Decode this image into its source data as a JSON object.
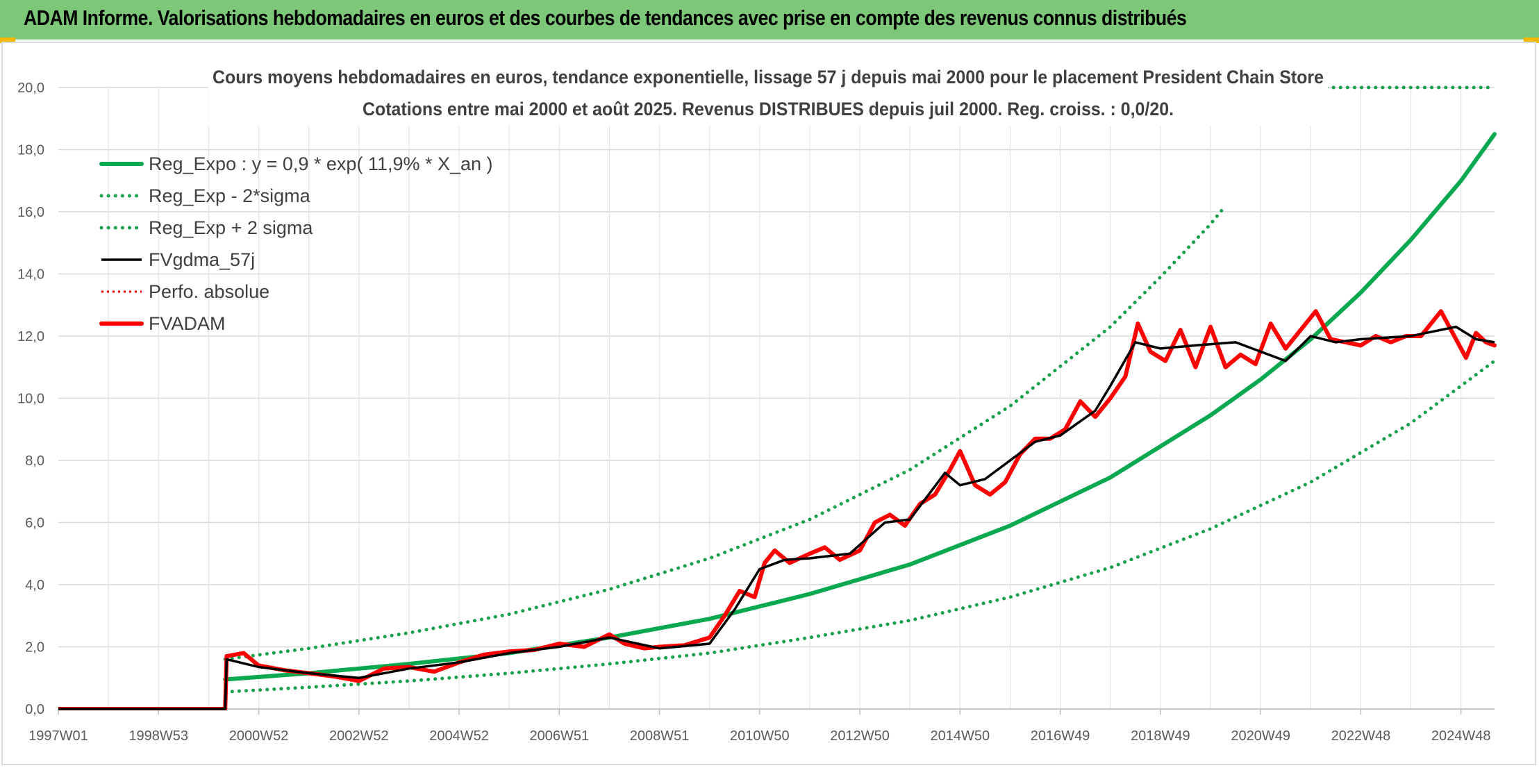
{
  "header": {
    "title": "ADAM Informe. Valorisations hebdomadaires en euros et des courbes de tendances avec prise en compte des revenus connus distribués"
  },
  "colors": {
    "banner": "#7dc878",
    "reg_expo": "#0aa84f",
    "sigma": "#18a04a",
    "fvgdma": "#000000",
    "perfo": "#ff0000",
    "fvadam": "#ff0000",
    "grid": "#d9d9d9"
  },
  "chart_data": {
    "type": "line",
    "title": "Cours moyens hebdomadaires en euros, tendance exponentielle, lissage 57 j depuis mai 2000 pour le placement President Chain Store",
    "subtitle": "Cotations entre mai 2000 et août 2025. Revenus DISTRIBUES depuis juil 2000. Reg. croiss. : 0,0/20.",
    "xlabel": "",
    "ylabel": "",
    "x_range": [
      1997.0,
      2025.67
    ],
    "ylim": [
      0,
      20
    ],
    "y_ticks": [
      "0,0",
      "2,0",
      "4,0",
      "6,0",
      "8,0",
      "10,0",
      "12,0",
      "14,0",
      "16,0",
      "18,0",
      "20,0"
    ],
    "x_ticks": [
      {
        "label": "1997W01",
        "x": 1997.0
      },
      {
        "label": "1998W53",
        "x": 1999.0
      },
      {
        "label": "2000W52",
        "x": 2001.0
      },
      {
        "label": "2002W52",
        "x": 2003.0
      },
      {
        "label": "2004W52",
        "x": 2005.0
      },
      {
        "label": "2006W51",
        "x": 2007.0
      },
      {
        "label": "2008W51",
        "x": 2009.0
      },
      {
        "label": "2010W50",
        "x": 2011.0
      },
      {
        "label": "2012W50",
        "x": 2013.0
      },
      {
        "label": "2014W50",
        "x": 2015.0
      },
      {
        "label": "2016W49",
        "x": 2017.0
      },
      {
        "label": "2018W49",
        "x": 2019.0
      },
      {
        "label": "2020W49",
        "x": 2021.0
      },
      {
        "label": "2022W48",
        "x": 2023.0
      },
      {
        "label": "2024W48",
        "x": 2025.0
      }
    ],
    "grid": true,
    "legend_position": "top-left",
    "series": [
      {
        "name": "Reg_Expo : y = 0,9 * exp( 11,9% *  X_an )",
        "style": "solid-thick",
        "color": "#0aa84f",
        "x": [
          2000.33,
          2002,
          2004,
          2006,
          2008,
          2010,
          2012,
          2014,
          2016,
          2018,
          2020,
          2021,
          2022,
          2023,
          2024,
          2025,
          2025.67
        ],
        "y": [
          0.95,
          1.15,
          1.45,
          1.8,
          2.3,
          2.9,
          3.7,
          4.65,
          5.9,
          7.45,
          9.45,
          10.6,
          11.9,
          13.4,
          15.1,
          17.0,
          18.5
        ]
      },
      {
        "name": "Reg_Exp - 2*sigma",
        "style": "dotted",
        "color": "#18a04a",
        "x": [
          2000.33,
          2002,
          2004,
          2006,
          2008,
          2010,
          2012,
          2014,
          2016,
          2018,
          2020,
          2022,
          2024,
          2025.67
        ],
        "y": [
          0.55,
          0.7,
          0.9,
          1.15,
          1.45,
          1.8,
          2.3,
          2.85,
          3.6,
          4.55,
          5.8,
          7.3,
          9.2,
          11.2
        ]
      },
      {
        "name": "Reg_Exp + 2 sigma",
        "style": "dotted",
        "color": "#18a04a",
        "x": [
          2000.33,
          2002,
          2004,
          2006,
          2008,
          2010,
          2012,
          2014,
          2016,
          2018,
          2019,
          2020,
          2020.3
        ],
        "y": [
          1.6,
          1.95,
          2.45,
          3.05,
          3.85,
          4.85,
          6.1,
          7.7,
          9.75,
          12.3,
          13.9,
          15.6,
          16.2
        ]
      },
      {
        "name": "FVgdma_57j",
        "style": "solid",
        "color": "#000000",
        "x": [
          1997.0,
          2000.33,
          2000.36,
          2001,
          2002,
          2003,
          2004,
          2005,
          2006,
          2007,
          2008,
          2009,
          2010,
          2010.5,
          2011.0,
          2011.5,
          2012,
          2012.8,
          2013.5,
          2014,
          2014.7,
          2015,
          2015.5,
          2016.5,
          2017,
          2017.7,
          2018,
          2018.5,
          2019,
          2019.7,
          2020.5,
          2021.5,
          2022,
          2022.5,
          2023,
          2024,
          2024.9,
          2025.3,
          2025.67
        ],
        "y": [
          0.0,
          0.0,
          1.6,
          1.35,
          1.15,
          1.0,
          1.3,
          1.5,
          1.8,
          2.0,
          2.3,
          1.95,
          2.1,
          3.2,
          4.5,
          4.8,
          4.85,
          5.0,
          6.0,
          6.1,
          7.6,
          7.2,
          7.4,
          8.6,
          8.8,
          9.6,
          10.4,
          11.8,
          11.6,
          11.7,
          11.8,
          11.2,
          12.0,
          11.8,
          11.9,
          12.0,
          12.3,
          11.9,
          11.8
        ]
      },
      {
        "name": "Perfo. absolue",
        "style": "dotted-thin",
        "color": "#ff0000",
        "x": [
          1997.0,
          2000.33,
          2000.36,
          2001,
          2002,
          2003,
          2004,
          2005,
          2006,
          2007,
          2008,
          2009,
          2010,
          2010.5,
          2011.0,
          2011.5,
          2012,
          2012.8,
          2013.5,
          2014,
          2014.7,
          2015,
          2015.5,
          2016.5,
          2017,
          2017.7,
          2018,
          2018.5,
          2019,
          2019.7,
          2020.5,
          2021.5,
          2022,
          2022.5,
          2023,
          2024,
          2024.9,
          2025.3,
          2025.67
        ],
        "y": [
          0.0,
          0.0,
          1.6,
          1.35,
          1.15,
          1.0,
          1.3,
          1.5,
          1.8,
          2.0,
          2.3,
          1.95,
          2.1,
          3.2,
          4.5,
          4.8,
          4.85,
          5.0,
          6.0,
          6.1,
          7.6,
          7.2,
          7.4,
          8.6,
          8.8,
          9.6,
          10.4,
          11.8,
          11.6,
          11.7,
          11.8,
          11.2,
          12.0,
          11.8,
          11.9,
          12.0,
          12.3,
          11.9,
          11.8
        ]
      },
      {
        "name": "FVADAM",
        "style": "solid-thick",
        "color": "#ff0000",
        "x": [
          1997.0,
          2000.33,
          2000.36,
          2000.7,
          2001,
          2001.5,
          2002,
          2002.5,
          2003,
          2003.5,
          2004,
          2004.5,
          2005,
          2005.5,
          2006,
          2006.5,
          2007,
          2007.5,
          2008,
          2008.3,
          2008.7,
          2009,
          2009.5,
          2010,
          2010.3,
          2010.6,
          2010.9,
          2011.1,
          2011.3,
          2011.6,
          2012,
          2012.3,
          2012.6,
          2013,
          2013.3,
          2013.6,
          2013.9,
          2014.2,
          2014.5,
          2014.8,
          2015.0,
          2015.3,
          2015.6,
          2015.9,
          2016.2,
          2016.5,
          2016.8,
          2017.1,
          2017.4,
          2017.7,
          2018.0,
          2018.3,
          2018.55,
          2018.8,
          2019.1,
          2019.4,
          2019.7,
          2020.0,
          2020.3,
          2020.6,
          2020.9,
          2021.2,
          2021.5,
          2021.8,
          2022.1,
          2022.4,
          2022.7,
          2023.0,
          2023.3,
          2023.6,
          2023.9,
          2024.2,
          2024.6,
          2024.9,
          2025.1,
          2025.3,
          2025.5,
          2025.67
        ],
        "y": [
          0.0,
          0.0,
          1.7,
          1.8,
          1.4,
          1.25,
          1.15,
          1.05,
          0.9,
          1.3,
          1.35,
          1.2,
          1.5,
          1.75,
          1.85,
          1.9,
          2.1,
          2.0,
          2.4,
          2.1,
          1.95,
          2.0,
          2.05,
          2.3,
          3.0,
          3.8,
          3.6,
          4.7,
          5.1,
          4.7,
          5.0,
          5.2,
          4.8,
          5.1,
          6.0,
          6.25,
          5.9,
          6.6,
          6.9,
          7.7,
          8.3,
          7.2,
          6.9,
          7.3,
          8.2,
          8.7,
          8.7,
          9.0,
          9.9,
          9.4,
          10.0,
          10.7,
          12.4,
          11.5,
          11.2,
          12.2,
          11.0,
          12.3,
          11.0,
          11.4,
          11.1,
          12.4,
          11.6,
          12.2,
          12.8,
          11.9,
          11.8,
          11.7,
          12.0,
          11.8,
          12.0,
          12.0,
          12.8,
          11.9,
          11.3,
          12.1,
          11.8,
          11.7
        ]
      }
    ]
  }
}
